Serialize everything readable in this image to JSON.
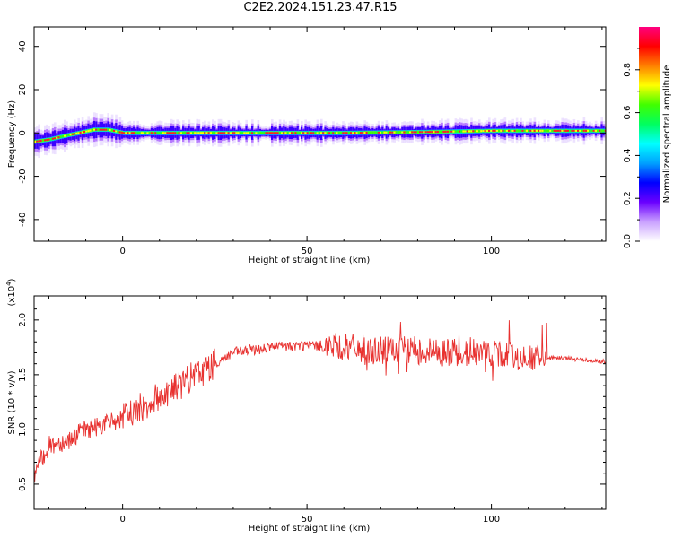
{
  "title": "C2E2.2024.151.23.47.R15",
  "chart_data": [
    {
      "type": "heatmap",
      "xlabel": "Height of straight line (km)",
      "ylabel": "Frequency (Hz)",
      "xlim": [
        -24,
        131
      ],
      "ylim": [
        -50,
        49
      ],
      "xticks": [
        0,
        50,
        100
      ],
      "xtick_labels": [
        "0",
        "50",
        "100"
      ],
      "yticks": [
        -40,
        -20,
        0,
        20,
        40
      ],
      "ytick_labels": [
        "-40",
        "-20",
        "0",
        "20",
        "40"
      ],
      "colorbar": {
        "label": "Normalized spectral amplitude",
        "range": [
          0,
          1
        ],
        "ticks": [
          0.0,
          0.2,
          0.4,
          0.6,
          0.8
        ],
        "tick_labels": [
          "0.0",
          "0.2",
          "0.4",
          "0.6",
          "0.8"
        ],
        "colors": [
          "#ffffff",
          "#c9a0ff",
          "#6a00ff",
          "#0000ff",
          "#00a0ff",
          "#00ffff",
          "#00ff60",
          "#40ff00",
          "#ffff00",
          "#ff8000",
          "#ff0000",
          "#ff0080"
        ]
      },
      "center_frequency_track": [
        {
          "x": -24,
          "y": -4
        },
        {
          "x": -20,
          "y": -3
        },
        {
          "x": -15,
          "y": -1
        },
        {
          "x": -12,
          "y": 0
        },
        {
          "x": -8,
          "y": 1.5
        },
        {
          "x": -4,
          "y": 1.5
        },
        {
          "x": 0,
          "y": 0
        },
        {
          "x": 10,
          "y": 0
        },
        {
          "x": 30,
          "y": 0
        },
        {
          "x": 60,
          "y": 0
        },
        {
          "x": 85,
          "y": 0.5
        },
        {
          "x": 100,
          "y": 1
        },
        {
          "x": 110,
          "y": 1
        },
        {
          "x": 131,
          "y": 1
        }
      ]
    },
    {
      "type": "line",
      "xlabel": "Height of straight line (km)",
      "ylabel": "SNR (10 * v/v)",
      "y_exponent_label": "(x10",
      "y_exponent_power": "4",
      "xlim": [
        -24,
        131
      ],
      "ylim": [
        0.27,
        2.22
      ],
      "xticks": [
        0,
        50,
        100
      ],
      "xtick_labels": [
        "0",
        "50",
        "100"
      ],
      "yticks": [
        0.5,
        1.0,
        1.5,
        2.0
      ],
      "ytick_labels": [
        "0.5",
        "1.0",
        "1.5",
        "2.0"
      ],
      "series": [
        {
          "color": "#e8312f",
          "trend": [
            {
              "x": -24,
              "y": 0.6
            },
            {
              "x": -20,
              "y": 0.85
            },
            {
              "x": -15,
              "y": 0.9
            },
            {
              "x": -10,
              "y": 1.0
            },
            {
              "x": -5,
              "y": 1.05
            },
            {
              "x": 0,
              "y": 1.1
            },
            {
              "x": 5,
              "y": 1.2
            },
            {
              "x": 10,
              "y": 1.3
            },
            {
              "x": 15,
              "y": 1.4
            },
            {
              "x": 20,
              "y": 1.5
            },
            {
              "x": 25,
              "y": 1.6
            },
            {
              "x": 30,
              "y": 1.7
            },
            {
              "x": 40,
              "y": 1.75
            },
            {
              "x": 50,
              "y": 1.77
            },
            {
              "x": 60,
              "y": 1.75
            },
            {
              "x": 70,
              "y": 1.72
            },
            {
              "x": 80,
              "y": 1.72
            },
            {
              "x": 90,
              "y": 1.7
            },
            {
              "x": 100,
              "y": 1.7
            },
            {
              "x": 110,
              "y": 1.65
            },
            {
              "x": 120,
              "y": 1.65
            },
            {
              "x": 131,
              "y": 1.62
            }
          ]
        }
      ]
    }
  ]
}
